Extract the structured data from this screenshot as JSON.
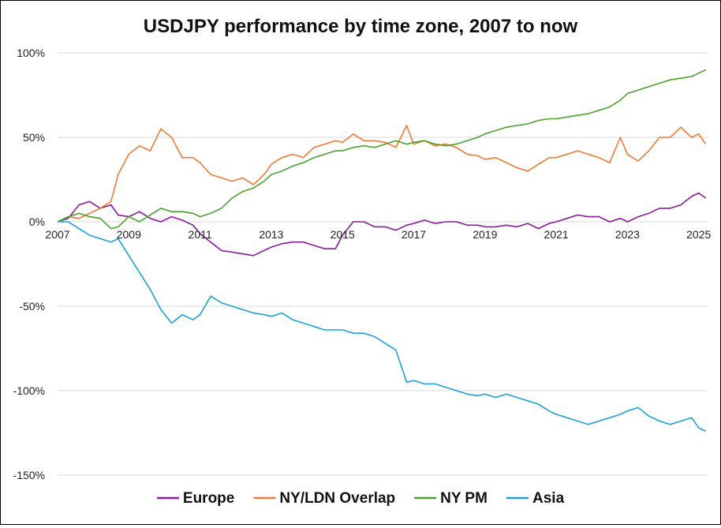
{
  "chart_data": {
    "type": "line",
    "title": "USDJPY performance by time zone, 2007 to now",
    "xlabel": "",
    "ylabel": "",
    "xlim": [
      2007.0,
      2025.25
    ],
    "ylim": [
      -150,
      100
    ],
    "y_ticks": [
      100,
      50,
      0,
      -50,
      -100,
      -150
    ],
    "y_tick_labels": [
      "100%",
      "50%",
      "0%",
      "-50%",
      "-100%",
      "-150%"
    ],
    "x_ticks": [
      2007,
      2009,
      2011,
      2013,
      2015,
      2017,
      2019,
      2021,
      2023,
      2025
    ],
    "x_tick_labels": [
      "2007",
      "2009",
      "2011",
      "2013",
      "2015",
      "2017",
      "2019",
      "2021",
      "2023",
      "2025"
    ],
    "grid": "horizontal",
    "legend_position": "bottom",
    "series": [
      {
        "name": "Europe",
        "color": "#8b1a9e",
        "x": [
          2007.0,
          2007.3,
          2007.6,
          2007.9,
          2008.2,
          2008.5,
          2008.7,
          2009.0,
          2009.3,
          2009.6,
          2009.9,
          2010.2,
          2010.5,
          2010.8,
          2011.0,
          2011.3,
          2011.6,
          2011.9,
          2012.2,
          2012.5,
          2012.8,
          2013.0,
          2013.3,
          2013.6,
          2013.9,
          2014.2,
          2014.5,
          2014.8,
          2015.0,
          2015.3,
          2015.6,
          2015.9,
          2016.2,
          2016.5,
          2016.8,
          2017.0,
          2017.3,
          2017.6,
          2017.9,
          2018.2,
          2018.5,
          2018.8,
          2019.0,
          2019.3,
          2019.6,
          2019.9,
          2020.2,
          2020.5,
          2020.8,
          2021.0,
          2021.3,
          2021.6,
          2021.9,
          2022.2,
          2022.5,
          2022.8,
          2023.0,
          2023.3,
          2023.6,
          2023.9,
          2024.2,
          2024.5,
          2024.8,
          2025.0,
          2025.2
        ],
        "values": [
          0,
          2,
          10,
          12,
          8,
          10,
          4,
          3,
          6,
          2,
          0,
          3,
          1,
          -2,
          -7,
          -12,
          -17,
          -18,
          -19,
          -20,
          -17,
          -15,
          -13,
          -12,
          -12,
          -14,
          -16,
          -16,
          -8,
          0,
          0,
          -3,
          -3,
          -5,
          -2,
          -1,
          1,
          -1,
          0,
          0,
          -2,
          -2,
          -3,
          -3,
          -2,
          -3,
          -1,
          -4,
          -1,
          0,
          2,
          4,
          3,
          3,
          0,
          2,
          0,
          3,
          5,
          8,
          8,
          10,
          15,
          17,
          14
        ]
      },
      {
        "name": "NY/LDN Overlap",
        "color": "#ef7a35",
        "x": [
          2007.0,
          2007.3,
          2007.6,
          2007.9,
          2008.2,
          2008.5,
          2008.7,
          2009.0,
          2009.3,
          2009.6,
          2009.9,
          2010.2,
          2010.5,
          2010.8,
          2011.0,
          2011.3,
          2011.6,
          2011.9,
          2012.2,
          2012.5,
          2012.8,
          2013.0,
          2013.3,
          2013.6,
          2013.9,
          2014.2,
          2014.5,
          2014.8,
          2015.0,
          2015.3,
          2015.6,
          2015.9,
          2016.2,
          2016.5,
          2016.8,
          2017.0,
          2017.3,
          2017.6,
          2017.9,
          2018.2,
          2018.5,
          2018.8,
          2019.0,
          2019.3,
          2019.6,
          2019.9,
          2020.2,
          2020.5,
          2020.8,
          2021.0,
          2021.3,
          2021.6,
          2021.9,
          2022.2,
          2022.5,
          2022.8,
          2023.0,
          2023.3,
          2023.6,
          2023.9,
          2024.2,
          2024.5,
          2024.8,
          2025.0,
          2025.2
        ],
        "values": [
          0,
          3,
          2,
          5,
          8,
          12,
          28,
          40,
          45,
          42,
          55,
          50,
          38,
          38,
          35,
          28,
          26,
          24,
          26,
          22,
          28,
          34,
          38,
          40,
          38,
          44,
          46,
          48,
          47,
          52,
          48,
          48,
          47,
          44,
          57,
          46,
          48,
          45,
          46,
          44,
          40,
          39,
          37,
          38,
          35,
          32,
          30,
          34,
          38,
          38,
          40,
          42,
          40,
          38,
          35,
          50,
          40,
          36,
          42,
          50,
          50,
          56,
          50,
          52,
          46
        ]
      },
      {
        "name": "NY PM",
        "color": "#4ca12c",
        "x": [
          2007.0,
          2007.3,
          2007.6,
          2007.9,
          2008.2,
          2008.5,
          2008.7,
          2009.0,
          2009.3,
          2009.6,
          2009.9,
          2010.2,
          2010.5,
          2010.8,
          2011.0,
          2011.3,
          2011.6,
          2011.9,
          2012.2,
          2012.5,
          2012.8,
          2013.0,
          2013.3,
          2013.6,
          2013.9,
          2014.2,
          2014.5,
          2014.8,
          2015.0,
          2015.3,
          2015.6,
          2015.9,
          2016.2,
          2016.5,
          2016.8,
          2017.0,
          2017.3,
          2017.6,
          2017.9,
          2018.2,
          2018.5,
          2018.8,
          2019.0,
          2019.3,
          2019.6,
          2019.9,
          2020.2,
          2020.5,
          2020.8,
          2021.0,
          2021.3,
          2021.6,
          2021.9,
          2022.2,
          2022.5,
          2022.8,
          2023.0,
          2023.3,
          2023.6,
          2023.9,
          2024.2,
          2024.5,
          2024.8,
          2025.0,
          2025.2
        ],
        "values": [
          0,
          3,
          5,
          3,
          2,
          -4,
          -3,
          3,
          0,
          4,
          8,
          6,
          6,
          5,
          3,
          5,
          8,
          14,
          18,
          20,
          24,
          28,
          30,
          33,
          35,
          38,
          40,
          42,
          42,
          44,
          45,
          44,
          46,
          48,
          46,
          47,
          48,
          46,
          45,
          46,
          48,
          50,
          52,
          54,
          56,
          57,
          58,
          60,
          61,
          61,
          62,
          63,
          64,
          66,
          68,
          72,
          76,
          78,
          80,
          82,
          84,
          85,
          86,
          88,
          90
        ]
      },
      {
        "name": "Asia",
        "color": "#1ea0d8",
        "x": [
          2007.0,
          2007.3,
          2007.6,
          2007.9,
          2008.2,
          2008.5,
          2008.7,
          2009.0,
          2009.3,
          2009.6,
          2009.9,
          2010.2,
          2010.5,
          2010.8,
          2011.0,
          2011.3,
          2011.6,
          2011.9,
          2012.2,
          2012.5,
          2012.8,
          2013.0,
          2013.3,
          2013.6,
          2013.9,
          2014.2,
          2014.5,
          2014.8,
          2015.0,
          2015.3,
          2015.6,
          2015.9,
          2016.2,
          2016.5,
          2016.8,
          2017.0,
          2017.3,
          2017.6,
          2017.9,
          2018.2,
          2018.5,
          2018.8,
          2019.0,
          2019.3,
          2019.6,
          2019.9,
          2020.2,
          2020.5,
          2020.8,
          2021.0,
          2021.3,
          2021.6,
          2021.9,
          2022.2,
          2022.5,
          2022.8,
          2023.0,
          2023.3,
          2023.6,
          2023.9,
          2024.2,
          2024.5,
          2024.8,
          2025.0,
          2025.2
        ],
        "values": [
          0,
          0,
          -4,
          -8,
          -10,
          -12,
          -10,
          -20,
          -30,
          -40,
          -52,
          -60,
          -55,
          -58,
          -55,
          -44,
          -48,
          -50,
          -52,
          -54,
          -55,
          -56,
          -54,
          -58,
          -60,
          -62,
          -64,
          -64,
          -64,
          -66,
          -66,
          -68,
          -72,
          -76,
          -95,
          -94,
          -96,
          -96,
          -98,
          -100,
          -102,
          -103,
          -102,
          -104,
          -102,
          -104,
          -106,
          -108,
          -112,
          -114,
          -116,
          -118,
          -120,
          -118,
          -116,
          -114,
          -112,
          -110,
          -115,
          -118,
          -120,
          -118,
          -116,
          -122,
          -124
        ]
      }
    ]
  }
}
